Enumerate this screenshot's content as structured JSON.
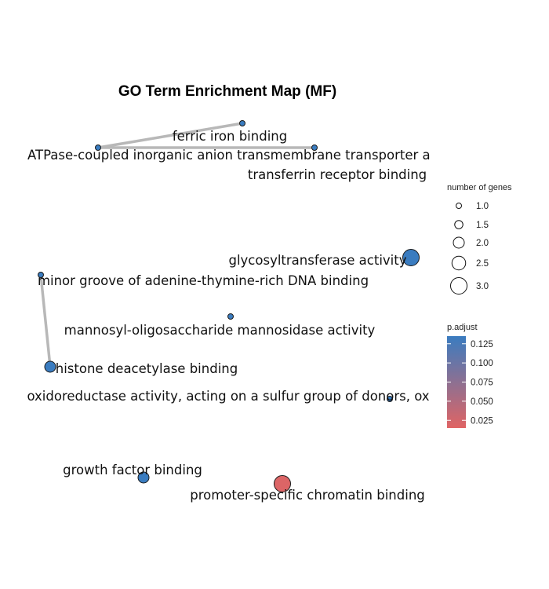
{
  "chart_data": {
    "type": "network",
    "title": "GO Term Enrichment Map (MF)",
    "nodes": [
      {
        "label": "ferric iron binding",
        "genes": 1,
        "p_adjust": 0.135
      },
      {
        "label": "ATPase-coupled inorganic anion transmembrane transporter a",
        "genes": 1,
        "p_adjust": 0.135
      },
      {
        "label": "transferrin receptor binding",
        "genes": 1,
        "p_adjust": 0.135
      },
      {
        "label": "glycosyltransferase activity",
        "genes": 3,
        "p_adjust": 0.135
      },
      {
        "label": "minor groove of adenine-thymine-rich DNA binding",
        "genes": 1,
        "p_adjust": 0.135
      },
      {
        "label": "mannosyl-oligosaccharide mannosidase activity",
        "genes": 1,
        "p_adjust": 0.135
      },
      {
        "label": "histone deacetylase binding",
        "genes": 2,
        "p_adjust": 0.135
      },
      {
        "label": "oxidoreductase activity, acting on a sulfur group of donors, ox",
        "genes": 1,
        "p_adjust": 0.135
      },
      {
        "label": "growth factor binding",
        "genes": 2,
        "p_adjust": 0.135
      },
      {
        "label": "promoter-specific chromatin binding",
        "genes": 3,
        "p_adjust": 0.018
      }
    ],
    "edges": [
      {
        "source": "ferric iron binding",
        "target": "ATPase-coupled inorganic anion transmembrane transporter a"
      },
      {
        "source": "ATPase-coupled inorganic anion transmembrane transporter a",
        "target": "transferrin receptor binding"
      },
      {
        "source": "minor groove of adenine-thymine-rich DNA binding",
        "target": "histone deacetylase binding"
      }
    ],
    "legend_size": {
      "title": "number of genes",
      "entries": [
        "1.0",
        "1.5",
        "2.0",
        "2.5",
        "3.0"
      ],
      "values": [
        1.0,
        1.5,
        2.0,
        2.5,
        3.0
      ]
    },
    "legend_color": {
      "title": "p.adjust",
      "ticks": [
        "0.125",
        "0.100",
        "0.075",
        "0.050",
        "0.025"
      ],
      "tick_values": [
        0.125,
        0.1,
        0.075,
        0.05,
        0.025
      ],
      "range": [
        0.015,
        0.135
      ],
      "low_color": "#E06464",
      "high_color": "#3A7CC0"
    },
    "legend_placement": "right"
  }
}
